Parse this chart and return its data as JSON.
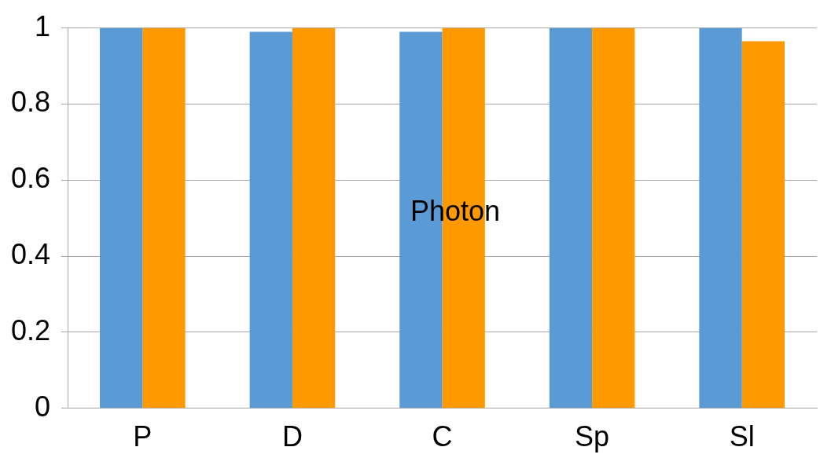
{
  "chart_data": {
    "type": "bar",
    "categories": [
      "P",
      "D",
      "C",
      "Sp",
      "Sl"
    ],
    "series": [
      {
        "color": "#5b9bd5",
        "values": [
          1,
          0.99,
          0.99,
          1,
          1
        ]
      },
      {
        "color": "#ff9900",
        "values": [
          1,
          1,
          1,
          1,
          0.965
        ]
      }
    ],
    "ylim": [
      0,
      1
    ],
    "yticks": [
      0,
      0.2,
      0.4,
      0.6,
      0.8,
      1
    ],
    "grid": "y",
    "legend": false,
    "annotations": [
      "Photon"
    ]
  }
}
